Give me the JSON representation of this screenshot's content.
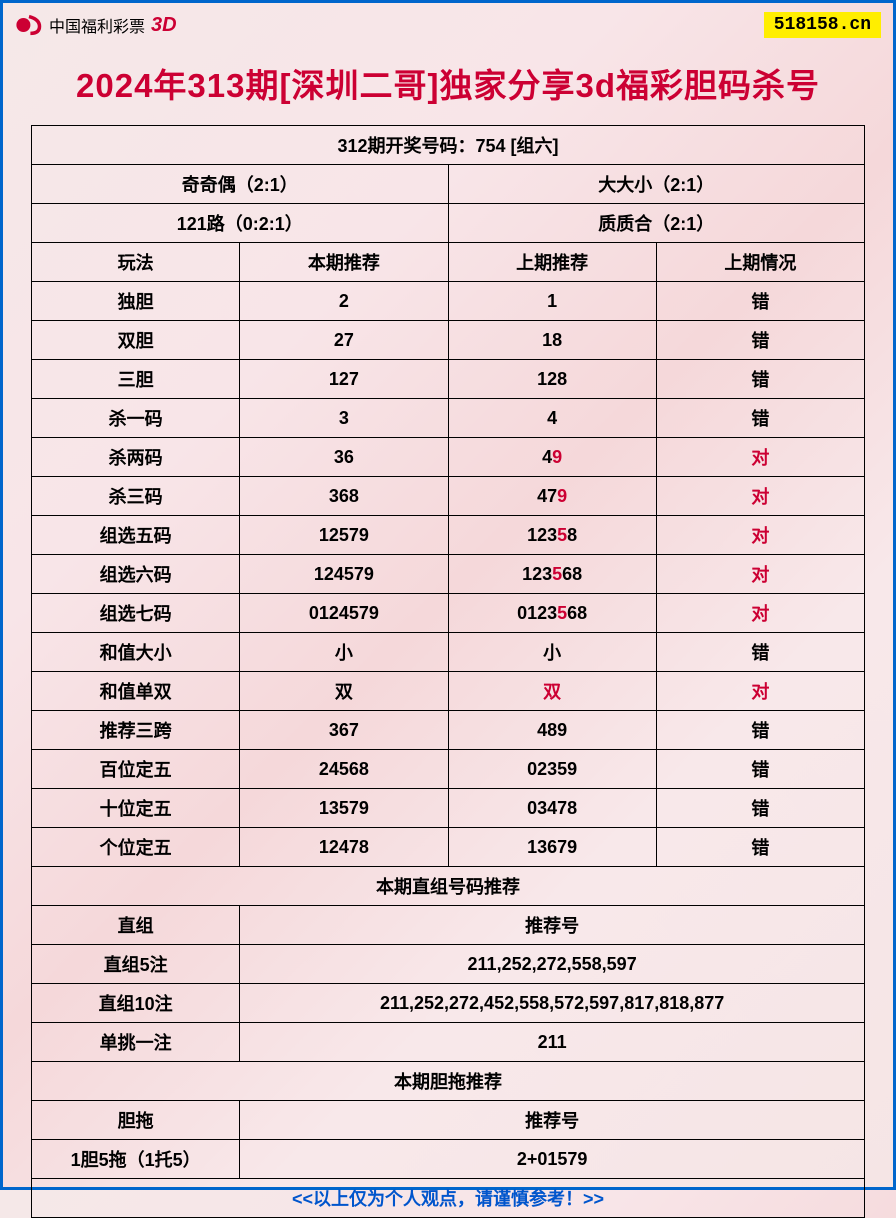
{
  "header": {
    "logo_text": "中国福利彩票",
    "logo_3d": "3D",
    "url_badge": "518158.cn"
  },
  "title": "2024年313期[深圳二哥]独家分享3d福彩胆码杀号",
  "top_row": "312期开奖号码：754 [组六]",
  "meta_row1": {
    "left": "奇奇偶（2:1）",
    "right": "大大小（2:1）"
  },
  "meta_row2": {
    "left": "121路（0:2:1）",
    "right": "质质合（2:1）"
  },
  "columns": {
    "c1": "玩法",
    "c2": "本期推荐",
    "c3": "上期推荐",
    "c4": "上期情况"
  },
  "rows": [
    {
      "name": "独胆",
      "current": "2",
      "prev": "1",
      "result": "错",
      "result_red": false
    },
    {
      "name": "双胆",
      "current": "27",
      "prev": "18",
      "result": "错",
      "result_red": false
    },
    {
      "name": "三胆",
      "current": "127",
      "prev": "128",
      "result": "错",
      "result_red": false
    },
    {
      "name": "杀一码",
      "current": "3",
      "prev": "4",
      "result": "错",
      "result_red": false
    },
    {
      "name": "杀两码",
      "current": "36",
      "prev_parts": [
        "4",
        "9"
      ],
      "prev_red_idx": [
        1
      ],
      "result": "对",
      "result_red": true
    },
    {
      "name": "杀三码",
      "current": "368",
      "prev_parts": [
        "4",
        "7",
        "9"
      ],
      "prev_red_idx": [
        2
      ],
      "result": "对",
      "result_red": true
    },
    {
      "name": "组选五码",
      "current": "12579",
      "prev_parts": [
        "1",
        "2",
        "3",
        "5",
        "8"
      ],
      "prev_red_idx": [
        3
      ],
      "result": "对",
      "result_red": true
    },
    {
      "name": "组选六码",
      "current": "124579",
      "prev_parts": [
        "1",
        "2",
        "3",
        "5",
        "6",
        "8"
      ],
      "prev_red_idx": [
        3
      ],
      "result": "对",
      "result_red": true
    },
    {
      "name": "组选七码",
      "current": "0124579",
      "prev_parts": [
        "0",
        "1",
        "2",
        "3",
        "5",
        "6",
        "8"
      ],
      "prev_red_idx": [
        4
      ],
      "result": "对",
      "result_red": true
    },
    {
      "name": "和值大小",
      "current": "小",
      "prev": "小",
      "result": "错",
      "result_red": false
    },
    {
      "name": "和值单双",
      "current": "双",
      "prev": "双",
      "prev_all_red": true,
      "result": "对",
      "result_red": true
    },
    {
      "name": "推荐三跨",
      "current": "367",
      "prev": "489",
      "result": "错",
      "result_red": false
    },
    {
      "name": "百位定五",
      "current": "24568",
      "prev": "02359",
      "result": "错",
      "result_red": false
    },
    {
      "name": "十位定五",
      "current": "13579",
      "prev": "03478",
      "result": "错",
      "result_red": false
    },
    {
      "name": "个位定五",
      "current": "12478",
      "prev": "13679",
      "result": "错",
      "result_red": false
    }
  ],
  "section2_header": "本期直组号码推荐",
  "section2_cols": {
    "left": "直组",
    "right": "推荐号"
  },
  "section2_rows": [
    {
      "name": "直组5注",
      "value": "211,252,272,558,597"
    },
    {
      "name": "直组10注",
      "value": "211,252,272,452,558,572,597,817,818,877"
    },
    {
      "name": "单挑一注",
      "value": "211"
    }
  ],
  "section3_header": "本期胆拖推荐",
  "section3_cols": {
    "left": "胆拖",
    "right": "推荐号"
  },
  "section3_rows": [
    {
      "name": "1胆5拖（1托5）",
      "value": "2+01579"
    }
  ],
  "footer": "<<以上仅为个人观点，请谨慎参考！>>"
}
